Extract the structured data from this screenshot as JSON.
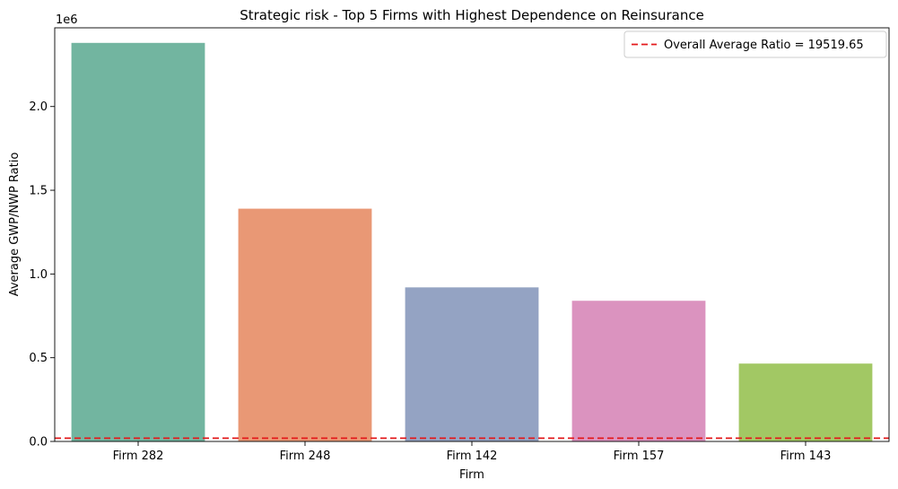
{
  "chart_data": {
    "type": "bar",
    "title": "Strategic risk - Top 5 Firms with Highest Dependence on Reinsurance",
    "xlabel": "Firm",
    "ylabel": "Average GWP/NWP Ratio",
    "y_offset_label": "1e6",
    "categories": [
      "Firm 282",
      "Firm 248",
      "Firm 142",
      "Firm 157",
      "Firm 143"
    ],
    "values": [
      2380000,
      1390000,
      920000,
      840000,
      465000
    ],
    "colors": [
      "#72b5a0",
      "#e99875",
      "#94a3c3",
      "#db93bf",
      "#a2c864"
    ],
    "ylim": [
      0,
      2470000
    ],
    "y_ticks": [
      0,
      500000,
      1000000,
      1500000,
      2000000
    ],
    "y_tick_labels": [
      "0.0",
      "0.5",
      "1.0",
      "1.5",
      "2.0"
    ],
    "reference_line": {
      "value": 19519.65,
      "color": "#e41a1c",
      "label": "Overall Average Ratio = 19519.65"
    },
    "legend": {
      "placement": "top-right"
    },
    "grid": false
  }
}
